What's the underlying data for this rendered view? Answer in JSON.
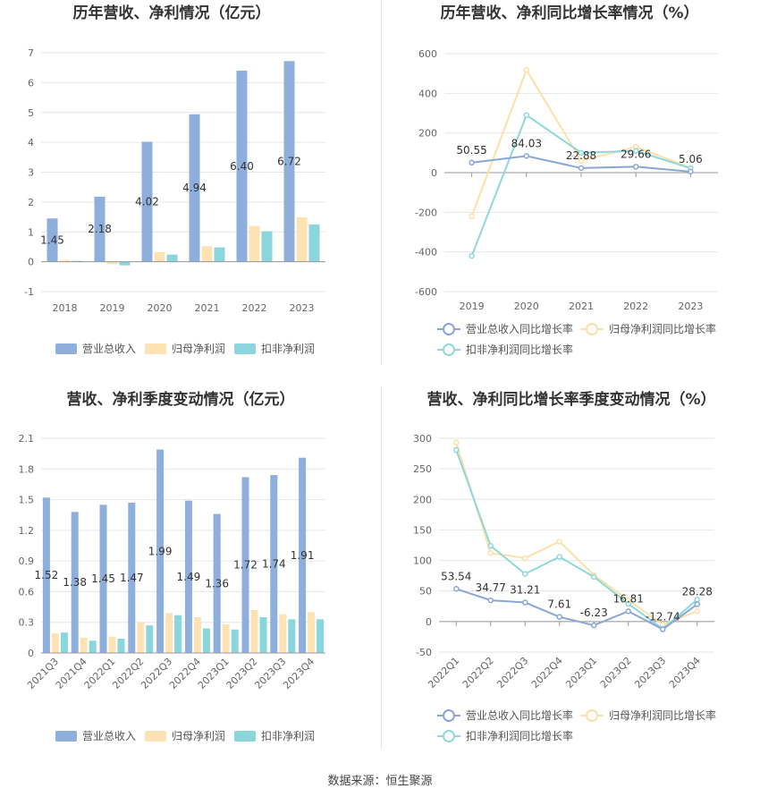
{
  "footer": {
    "source": "数据来源：恒生聚源"
  },
  "colors": {
    "revenue": "#8eaedc",
    "net_profit": "#fde3b4",
    "deducted_profit": "#8ad6dc",
    "growth_revenue": "#8ba6d6",
    "growth_net": "#fde0a8",
    "growth_deducted": "#8dd8dc"
  },
  "chart_data": [
    {
      "id": "annual-amount",
      "type": "bar",
      "title": "历年营收、净利情况（亿元）",
      "categories": [
        "2018",
        "2019",
        "2020",
        "2021",
        "2022",
        "2023"
      ],
      "series": [
        {
          "name": "营业总收入",
          "values": [
            1.45,
            2.18,
            4.02,
            4.94,
            6.4,
            6.72
          ],
          "labels": [
            "1.45",
            "2.18",
            "4.02",
            "4.94",
            "6.40",
            "6.72"
          ]
        },
        {
          "name": "归母净利润",
          "values": [
            0.06,
            -0.08,
            0.32,
            0.52,
            1.2,
            1.49
          ]
        },
        {
          "name": "扣非净利润",
          "values": [
            0.03,
            -0.12,
            0.24,
            0.48,
            1.02,
            1.25
          ]
        }
      ],
      "yticks": [
        "-1",
        "0",
        "1",
        "2",
        "3",
        "4",
        "5",
        "6",
        "7"
      ],
      "ylim": [
        -1,
        7
      ],
      "grid": true,
      "legend": "bottom"
    },
    {
      "id": "annual-growth",
      "type": "line",
      "title": "历年营收、净利同比增长率情况（%）",
      "categories": [
        "2019",
        "2020",
        "2021",
        "2022",
        "2023"
      ],
      "series": [
        {
          "name": "营业总收入同比增长率",
          "values": [
            50.55,
            84.03,
            22.88,
            29.66,
            5.06
          ],
          "labels": [
            "50.55",
            "84.03",
            "22.88",
            "29.66",
            "5.06"
          ]
        },
        {
          "name": "归母净利润同比增长率",
          "values": [
            -220,
            518,
            60,
            130,
            24
          ]
        },
        {
          "name": "扣非净利润同比增长率",
          "values": [
            -420,
            290,
            100,
            110,
            22
          ]
        }
      ],
      "yticks": [
        "-600",
        "-400",
        "-200",
        "0",
        "200",
        "400",
        "600"
      ],
      "ylim": [
        -600,
        600
      ],
      "grid": true,
      "legend": "bottom"
    },
    {
      "id": "quarterly-amount",
      "type": "bar",
      "title": "营收、净利季度变动情况（亿元）",
      "categories": [
        "2021Q3",
        "2021Q4",
        "2022Q1",
        "2022Q2",
        "2022Q3",
        "2022Q4",
        "2023Q1",
        "2023Q2",
        "2023Q3",
        "2023Q4"
      ],
      "series": [
        {
          "name": "营业总收入",
          "values": [
            1.52,
            1.38,
            1.45,
            1.47,
            1.99,
            1.49,
            1.36,
            1.72,
            1.74,
            1.91
          ],
          "labels": [
            "1.52",
            "1.38",
            "1.45",
            "1.47",
            "1.99",
            "1.49",
            "1.36",
            "1.72",
            "1.74",
            "1.91"
          ]
        },
        {
          "name": "归母净利润",
          "values": [
            0.19,
            0.15,
            0.16,
            0.3,
            0.39,
            0.35,
            0.28,
            0.42,
            0.38,
            0.4
          ]
        },
        {
          "name": "扣非净利润",
          "values": [
            0.2,
            0.12,
            0.14,
            0.27,
            0.37,
            0.24,
            0.23,
            0.35,
            0.33,
            0.33
          ]
        }
      ],
      "yticks": [
        "0",
        "0.3",
        "0.6",
        "0.9",
        "1.2",
        "1.5",
        "1.8",
        "2.1"
      ],
      "ylim": [
        0,
        2.1
      ],
      "grid": true,
      "legend": "bottom"
    },
    {
      "id": "quarterly-growth",
      "type": "line",
      "title": "营收、净利同比增长率季度变动情况（%）",
      "categories": [
        "2022Q1",
        "2022Q2",
        "2022Q3",
        "2022Q4",
        "2023Q1",
        "2023Q2",
        "2023Q3",
        "2023Q4"
      ],
      "series": [
        {
          "name": "营业总收入同比增长率",
          "values": [
            53.54,
            34.77,
            31.21,
            7.61,
            -6.23,
            16.81,
            -12.74,
            28.28
          ],
          "labels": [
            "53.54",
            "34.77",
            "31.21",
            "7.61",
            "-6.23",
            "16.81",
            "-12.74",
            "28.28"
          ]
        },
        {
          "name": "归母净利润同比增长率",
          "values": [
            293,
            112,
            104,
            131,
            76,
            35,
            -5,
            17
          ]
        },
        {
          "name": "扣非净利润同比增长率",
          "values": [
            281,
            124,
            78,
            106,
            73,
            29,
            -12,
            36
          ]
        }
      ],
      "yticks": [
        "-50",
        "0",
        "50",
        "100",
        "150",
        "200",
        "250",
        "300"
      ],
      "ylim": [
        -50,
        300
      ],
      "grid": true,
      "legend": "bottom"
    }
  ]
}
